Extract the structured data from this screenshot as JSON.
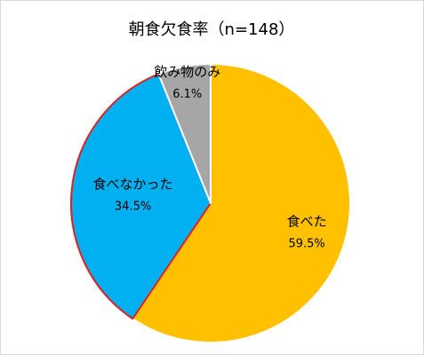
{
  "chart_data": {
    "type": "pie",
    "title": "朝食欠食率（n=148）",
    "categories": [
      "食べた",
      "食べなかった",
      "飲み物のみ"
    ],
    "values": [
      59.5,
      34.5,
      6.1
    ],
    "value_labels": [
      "59.5%",
      "34.5%",
      "6.1%"
    ],
    "colors": [
      "#FFC000",
      "#00B0F0",
      "#A6A6A6"
    ]
  }
}
